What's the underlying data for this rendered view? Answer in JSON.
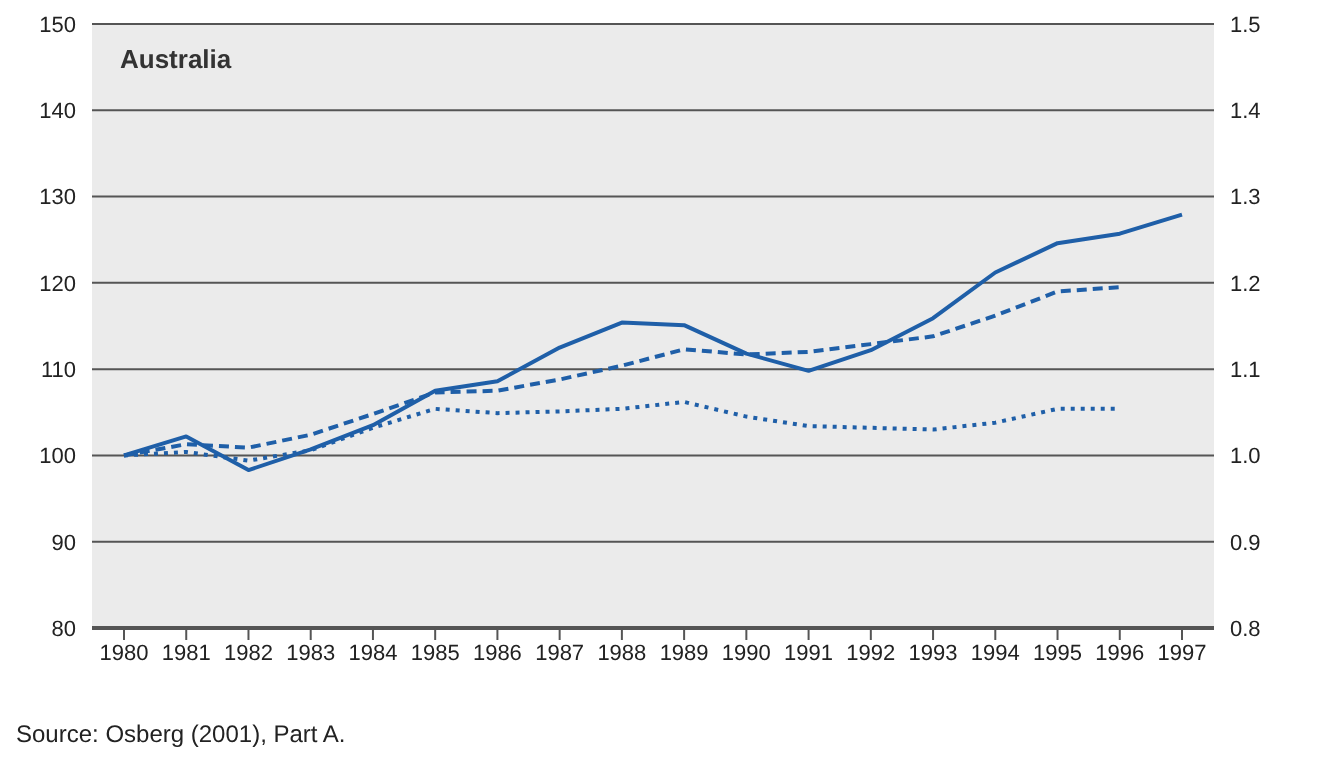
{
  "chart_data": {
    "type": "line",
    "title": "Australia",
    "categories": [
      "1980",
      "1981",
      "1982",
      "1983",
      "1984",
      "1985",
      "1986",
      "1987",
      "1988",
      "1989",
      "1990",
      "1991",
      "1992",
      "1993",
      "1994",
      "1995",
      "1996",
      "1997"
    ],
    "series": [
      {
        "color": "#1f5fa8",
        "line_style": "solid",
        "values": [
          100,
          102.2,
          98.3,
          100.7,
          103.5,
          107.5,
          108.6,
          112.5,
          115.4,
          115.1,
          111.8,
          109.8,
          112.2,
          115.9,
          121.2,
          124.6,
          125.7,
          127.9
        ]
      },
      {
        "color": "#1f5fa8",
        "line_style": "dashed",
        "values": [
          100,
          101.3,
          100.9,
          102.4,
          104.8,
          107.3,
          107.5,
          108.8,
          110.4,
          112.3,
          111.7,
          112.0,
          112.9,
          113.8,
          116.2,
          119.0,
          119.5,
          null
        ]
      },
      {
        "color": "#1f5fa8",
        "line_style": "dotted",
        "values": [
          100,
          100.4,
          99.4,
          100.6,
          103.2,
          105.4,
          104.9,
          105.1,
          105.4,
          106.2,
          104.5,
          103.4,
          103.2,
          103.0,
          103.8,
          105.4,
          105.4,
          null
        ]
      }
    ],
    "ylim": [
      80,
      150
    ],
    "yticks": [
      80,
      90,
      100,
      110,
      120,
      130,
      140,
      150
    ],
    "y2lim": [
      0.8,
      1.5
    ],
    "y2ticks": [
      {
        "value": 0.8,
        "label": "0.8"
      },
      {
        "value": 0.9,
        "label": "0.9"
      },
      {
        "value": 1.0,
        "label": "1.0"
      },
      {
        "value": 1.1,
        "label": "1.1"
      },
      {
        "value": 1.2,
        "label": "1.2"
      },
      {
        "value": 1.3,
        "label": "1.3"
      },
      {
        "value": 1.4,
        "label": "1.4"
      },
      {
        "value": 1.5,
        "label": "1.5"
      }
    ],
    "grid": "y",
    "legend": false,
    "marker": "none",
    "annotations": [
      "Source:  Osberg (2001), Part A."
    ]
  }
}
